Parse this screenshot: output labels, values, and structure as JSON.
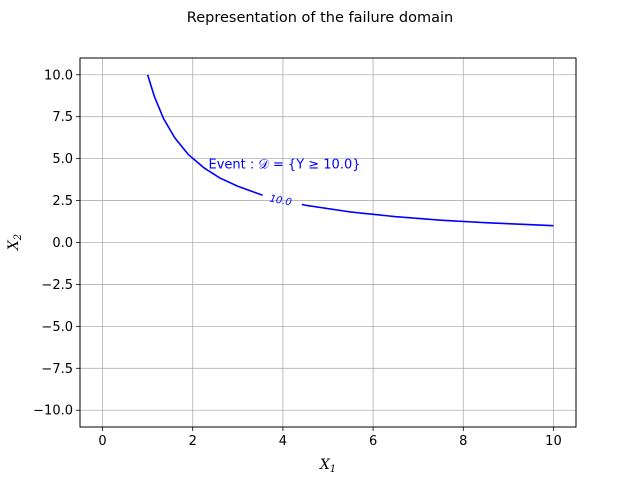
{
  "chart_data": {
    "type": "line",
    "title": "Representation of the failure domain",
    "xlabel_main": "X",
    "xlabel_sub": "1",
    "ylabel_main": "X",
    "ylabel_sub": "2",
    "xlim": [
      -0.5,
      10.5
    ],
    "ylim": [
      -11,
      11
    ],
    "xticks": [
      0,
      2,
      4,
      6,
      8,
      10
    ],
    "yticks": [
      -10.0,
      -7.5,
      -5.0,
      -2.5,
      0.0,
      2.5,
      5.0,
      7.5,
      10.0
    ],
    "xtick_labels": [
      "0",
      "2",
      "4",
      "6",
      "8",
      "10"
    ],
    "ytick_labels": [
      "−10.0",
      "−7.5",
      "−5.0",
      "−2.5",
      "0.0",
      "2.5",
      "5.0",
      "7.5",
      "10.0"
    ],
    "grid": true,
    "series": [
      {
        "color": "#0000ff",
        "x": [
          1.0,
          1.15,
          1.35,
          1.6,
          1.9,
          2.25,
          2.6,
          3.0,
          3.55,
          4.5,
          5.5,
          6.5,
          7.5,
          8.5,
          10.0
        ],
        "y": [
          10.0,
          8.7,
          7.4,
          6.25,
          5.25,
          4.45,
          3.85,
          3.35,
          2.82,
          2.22,
          1.82,
          1.54,
          1.33,
          1.18,
          1.0
        ]
      }
    ],
    "contour_label": {
      "text": "10.0",
      "x": 3.95,
      "y": 2.5
    },
    "annotation": {
      "text": "Event : 𝒟 = {Y ≥ 10.0}",
      "x": 2.35,
      "y": 4.4,
      "color": "#0000ff"
    }
  }
}
